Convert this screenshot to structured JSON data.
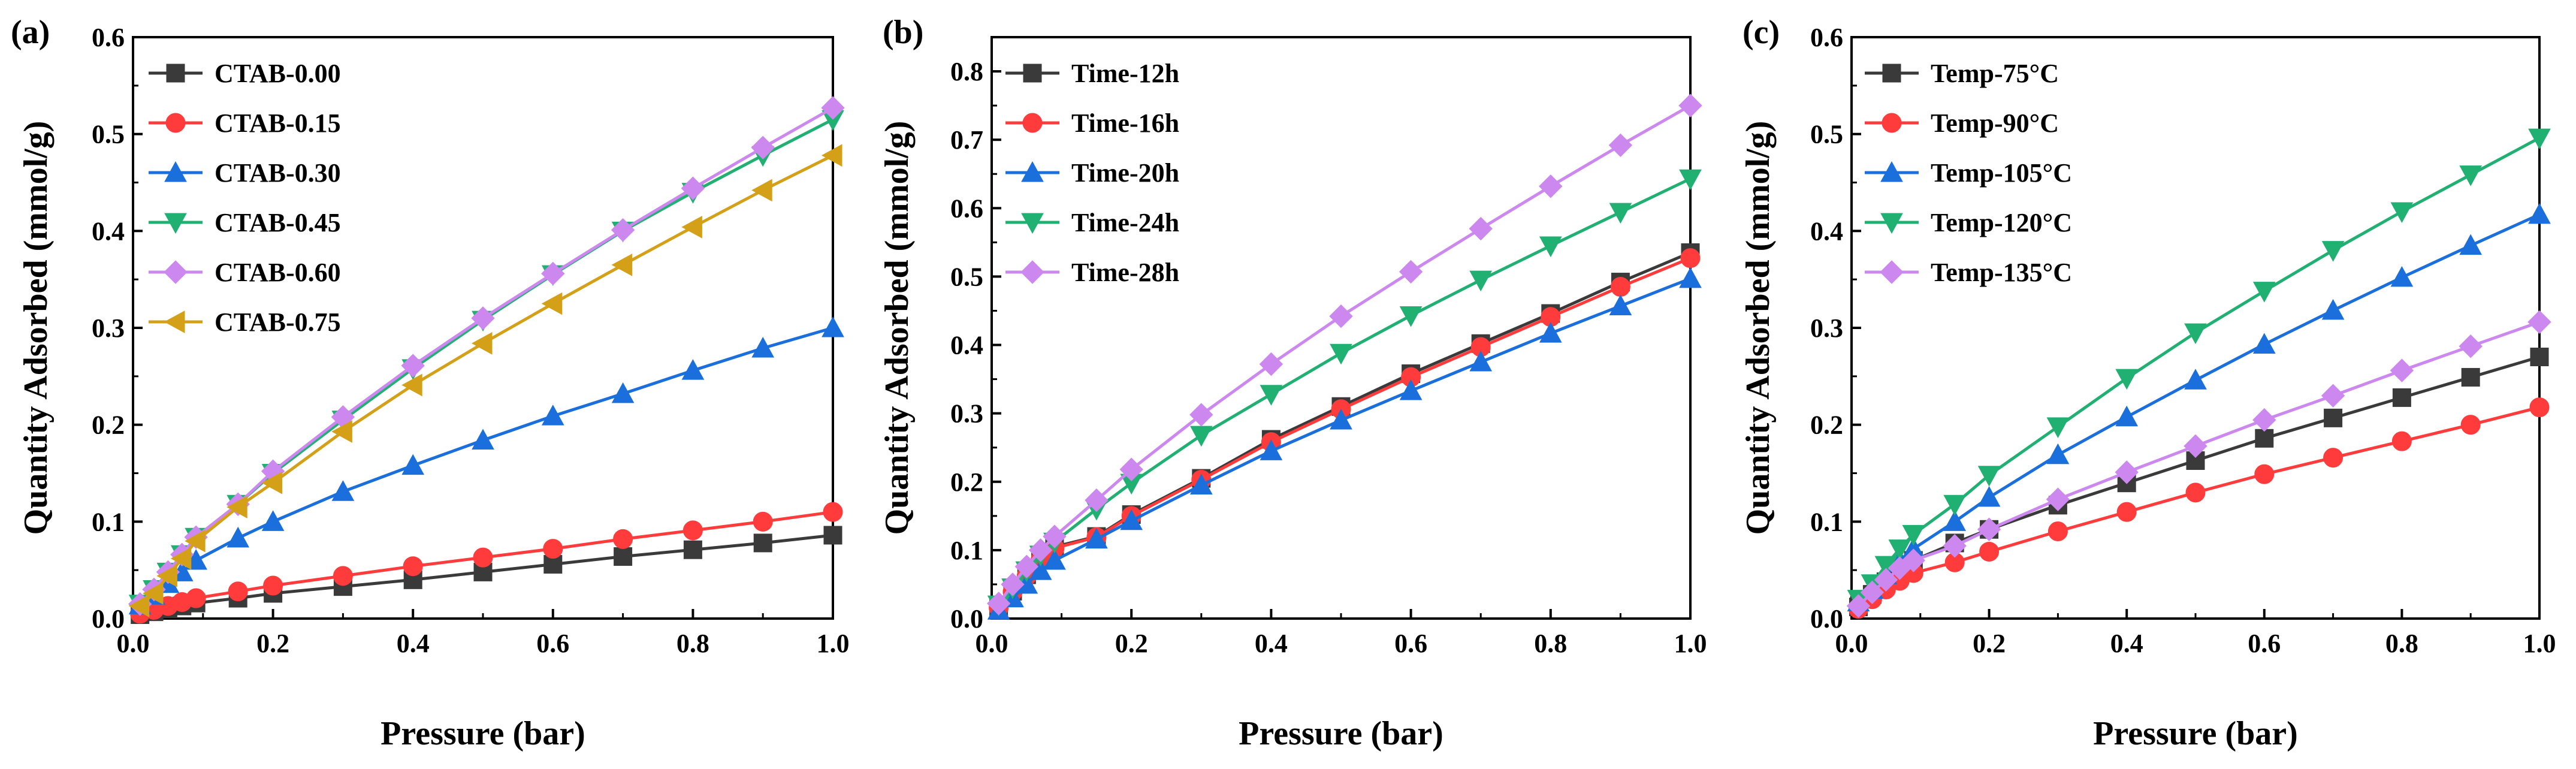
{
  "colors": {
    "black": "#3a3a3a",
    "red": "#ff3b3b",
    "blue": "#1a6fdc",
    "green": "#1fb072",
    "violet": "#cc88ee",
    "gold": "#d4a017"
  },
  "chart_data": [
    {
      "type": "line",
      "panel_label": "(a)",
      "xlabel": "Pressure (bar)",
      "ylabel": "Quantity Adsorbed (mmol/g)",
      "xlim": [
        0,
        1.0
      ],
      "ylim": [
        0,
        0.6
      ],
      "xticks": [
        "0.0",
        "0.2",
        "0.4",
        "0.6",
        "0.8",
        "1.0"
      ],
      "yticks": [
        "0.0",
        "0.1",
        "0.2",
        "0.3",
        "0.4",
        "0.5",
        "0.6"
      ],
      "legend_position": "top-left",
      "x": [
        0.01,
        0.03,
        0.05,
        0.07,
        0.09,
        0.15,
        0.2,
        0.3,
        0.4,
        0.5,
        0.6,
        0.7,
        0.8,
        0.9,
        1.0
      ],
      "series": [
        {
          "name": "CTAB-0.00",
          "color": "#3a3a3a",
          "marker": "square",
          "values": [
            0.004,
            0.007,
            0.01,
            0.013,
            0.016,
            0.021,
            0.026,
            0.033,
            0.04,
            0.048,
            0.056,
            0.064,
            0.071,
            0.078,
            0.086
          ]
        },
        {
          "name": "CTAB-0.15",
          "color": "#ff3b3b",
          "marker": "circle",
          "values": [
            0.005,
            0.009,
            0.013,
            0.017,
            0.021,
            0.028,
            0.034,
            0.044,
            0.054,
            0.063,
            0.072,
            0.082,
            0.091,
            0.1,
            0.11
          ]
        },
        {
          "name": "CTAB-0.30",
          "color": "#1a6fdc",
          "marker": "triangle-up",
          "values": [
            0.014,
            0.024,
            0.036,
            0.048,
            0.06,
            0.083,
            0.1,
            0.131,
            0.158,
            0.184,
            0.209,
            0.232,
            0.256,
            0.279,
            0.3
          ]
        },
        {
          "name": "CTAB-0.45",
          "color": "#1fb072",
          "marker": "triangle-down",
          "values": [
            0.015,
            0.03,
            0.048,
            0.066,
            0.084,
            0.118,
            0.15,
            0.205,
            0.258,
            0.308,
            0.355,
            0.4,
            0.44,
            0.478,
            0.515
          ]
        },
        {
          "name": "CTAB-0.60",
          "color": "#cc88ee",
          "marker": "diamond",
          "values": [
            0.015,
            0.03,
            0.048,
            0.066,
            0.084,
            0.118,
            0.152,
            0.208,
            0.261,
            0.31,
            0.356,
            0.401,
            0.444,
            0.486,
            0.527
          ]
        },
        {
          "name": "CTAB-0.75",
          "color": "#d4a017",
          "marker": "triangle-left",
          "values": [
            0.013,
            0.026,
            0.044,
            0.062,
            0.08,
            0.115,
            0.14,
            0.193,
            0.241,
            0.284,
            0.325,
            0.365,
            0.404,
            0.442,
            0.478
          ]
        }
      ]
    },
    {
      "type": "line",
      "panel_label": "(b)",
      "xlabel": "Pressure (bar)",
      "ylabel": "Quantity Adsorbed (mmol/g)",
      "xlim": [
        0,
        1.0
      ],
      "ylim": [
        0,
        0.85
      ],
      "xticks": [
        "0.0",
        "0.2",
        "0.4",
        "0.6",
        "0.8",
        "1.0"
      ],
      "yticks": [
        "0.0",
        "0.1",
        "0.2",
        "0.3",
        "0.4",
        "0.5",
        "0.6",
        "0.7",
        "0.8"
      ],
      "legend_position": "top-left",
      "x": [
        0.01,
        0.03,
        0.05,
        0.07,
        0.09,
        0.15,
        0.2,
        0.3,
        0.4,
        0.5,
        0.6,
        0.7,
        0.8,
        0.9,
        1.0
      ],
      "series": [
        {
          "name": "Time-12h",
          "color": "#3a3a3a",
          "marker": "square",
          "values": [
            0.017,
            0.04,
            0.064,
            0.088,
            0.105,
            0.12,
            0.152,
            0.205,
            0.262,
            0.31,
            0.358,
            0.402,
            0.446,
            0.492,
            0.535
          ]
        },
        {
          "name": "Time-16h",
          "color": "#ff3b3b",
          "marker": "circle",
          "values": [
            0.016,
            0.039,
            0.062,
            0.086,
            0.103,
            0.119,
            0.15,
            0.203,
            0.258,
            0.306,
            0.353,
            0.397,
            0.441,
            0.485,
            0.527
          ]
        },
        {
          "name": "Time-20h",
          "color": "#1a6fdc",
          "marker": "triangle-up",
          "values": [
            0.012,
            0.03,
            0.05,
            0.07,
            0.085,
            0.116,
            0.143,
            0.195,
            0.245,
            0.29,
            0.333,
            0.375,
            0.417,
            0.457,
            0.497
          ]
        },
        {
          "name": "Time-24h",
          "color": "#1fb072",
          "marker": "triangle-down",
          "values": [
            0.02,
            0.045,
            0.07,
            0.093,
            0.112,
            0.16,
            0.198,
            0.268,
            0.328,
            0.388,
            0.443,
            0.495,
            0.545,
            0.594,
            0.643
          ]
        },
        {
          "name": "Time-28h",
          "color": "#cc88ee",
          "marker": "diamond",
          "values": [
            0.022,
            0.05,
            0.076,
            0.1,
            0.12,
            0.173,
            0.218,
            0.298,
            0.372,
            0.442,
            0.507,
            0.57,
            0.632,
            0.692,
            0.75
          ]
        }
      ]
    },
    {
      "type": "line",
      "panel_label": "(c)",
      "xlabel": "Pressure (bar)",
      "ylabel": "Quantity Adsorbed (mmol/g)",
      "xlim": [
        0,
        1.0
      ],
      "ylim": [
        0,
        0.6
      ],
      "xticks": [
        "0.0",
        "0.2",
        "0.4",
        "0.6",
        "0.8",
        "1.0"
      ],
      "yticks": [
        "0.0",
        "0.1",
        "0.2",
        "0.3",
        "0.4",
        "0.5",
        "0.6"
      ],
      "legend_position": "top-left",
      "x": [
        0.01,
        0.03,
        0.05,
        0.07,
        0.09,
        0.15,
        0.2,
        0.3,
        0.4,
        0.5,
        0.6,
        0.7,
        0.8,
        0.9,
        1.0
      ],
      "series": [
        {
          "name": "Temp-75°C",
          "color": "#3a3a3a",
          "marker": "square",
          "values": [
            0.012,
            0.025,
            0.038,
            0.05,
            0.06,
            0.078,
            0.092,
            0.117,
            0.14,
            0.163,
            0.186,
            0.207,
            0.228,
            0.249,
            0.27
          ]
        },
        {
          "name": "Temp-90°C",
          "color": "#ff3b3b",
          "marker": "circle",
          "values": [
            0.01,
            0.02,
            0.03,
            0.039,
            0.047,
            0.058,
            0.069,
            0.09,
            0.11,
            0.13,
            0.149,
            0.166,
            0.183,
            0.2,
            0.218
          ]
        },
        {
          "name": "Temp-105°C",
          "color": "#1a6fdc",
          "marker": "triangle-up",
          "values": [
            0.017,
            0.03,
            0.045,
            0.06,
            0.072,
            0.1,
            0.125,
            0.169,
            0.208,
            0.246,
            0.283,
            0.318,
            0.352,
            0.385,
            0.417
          ]
        },
        {
          "name": "Temp-120°C",
          "color": "#1fb072",
          "marker": "triangle-down",
          "values": [
            0.02,
            0.036,
            0.055,
            0.072,
            0.087,
            0.118,
            0.148,
            0.198,
            0.248,
            0.295,
            0.338,
            0.38,
            0.42,
            0.458,
            0.496
          ]
        },
        {
          "name": "Temp-135°C",
          "color": "#cc88ee",
          "marker": "diamond",
          "values": [
            0.013,
            0.027,
            0.04,
            0.052,
            0.06,
            0.075,
            0.092,
            0.123,
            0.151,
            0.178,
            0.205,
            0.23,
            0.256,
            0.281,
            0.306
          ]
        }
      ]
    }
  ]
}
